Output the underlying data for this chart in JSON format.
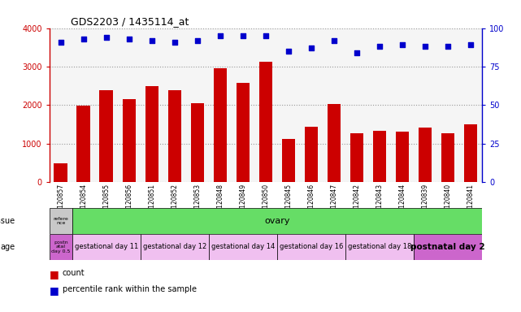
{
  "title": "GDS2203 / 1435114_at",
  "samples": [
    "GSM120857",
    "GSM120854",
    "GSM120855",
    "GSM120856",
    "GSM120851",
    "GSM120852",
    "GSM120853",
    "GSM120848",
    "GSM120849",
    "GSM120850",
    "GSM120845",
    "GSM120846",
    "GSM120847",
    "GSM120842",
    "GSM120843",
    "GSM120844",
    "GSM120839",
    "GSM120840",
    "GSM120841"
  ],
  "counts": [
    500,
    1980,
    2390,
    2160,
    2490,
    2380,
    2060,
    2950,
    2580,
    3120,
    1120,
    1430,
    2020,
    1270,
    1330,
    1310,
    1420,
    1270,
    1510
  ],
  "percentiles": [
    91,
    93,
    94,
    93,
    92,
    91,
    92,
    95,
    95,
    95,
    85,
    87,
    92,
    84,
    88,
    89,
    88,
    88,
    89
  ],
  "ylim_left": [
    0,
    4000
  ],
  "ylim_right": [
    0,
    100
  ],
  "yticks_left": [
    0,
    1000,
    2000,
    3000,
    4000
  ],
  "yticks_right": [
    0,
    25,
    50,
    75,
    100
  ],
  "bar_color": "#cc0000",
  "dot_color": "#0000cc",
  "tissue_row": {
    "reference_label": "refere\nnce",
    "reference_color": "#c8c8c8",
    "ovary_label": "ovary",
    "ovary_color": "#66dd66"
  },
  "age_row": {
    "groups": [
      {
        "label": "postn\natal\nday 0.5",
        "color": "#cc66cc",
        "start": 0,
        "end": 1
      },
      {
        "label": "gestational day 11",
        "color": "#f0c0f0",
        "start": 1,
        "end": 4
      },
      {
        "label": "gestational day 12",
        "color": "#f0c0f0",
        "start": 4,
        "end": 7
      },
      {
        "label": "gestational day 14",
        "color": "#f0c0f0",
        "start": 7,
        "end": 10
      },
      {
        "label": "gestational day 16",
        "color": "#f0c0f0",
        "start": 10,
        "end": 13
      },
      {
        "label": "gestational day 18",
        "color": "#f0c0f0",
        "start": 13,
        "end": 16
      },
      {
        "label": "postnatal day 2",
        "color": "#cc66cc",
        "start": 16,
        "end": 19
      }
    ]
  },
  "background_color": "#ffffff",
  "plot_bg_color": "#f5f5f5",
  "grid_color": "#999999",
  "tissue_arrow_label": "tissue",
  "age_arrow_label": "age"
}
